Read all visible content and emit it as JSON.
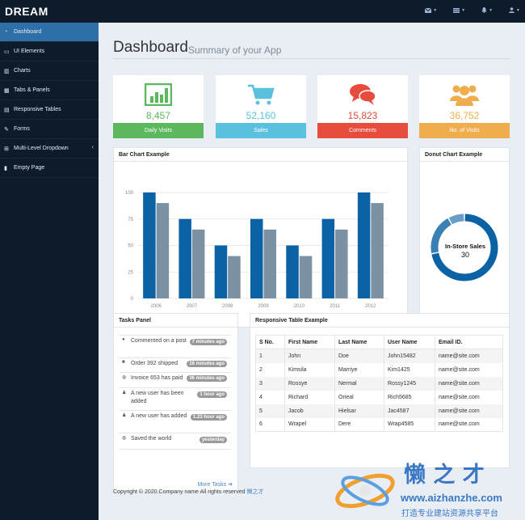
{
  "brand": "DREAM",
  "topbar": {
    "icons": [
      "envelope-icon",
      "tasks-icon",
      "bell-icon",
      "user-icon"
    ]
  },
  "sidebar": {
    "items": [
      {
        "label": "Dashboard",
        "icon": "dashboard-icon"
      },
      {
        "label": "UI Elements",
        "icon": "desktop-icon"
      },
      {
        "label": "Charts",
        "icon": "chart-icon"
      },
      {
        "label": "Tabs & Panels",
        "icon": "qrcode-icon"
      },
      {
        "label": "Responsive Tables",
        "icon": "table-icon"
      },
      {
        "label": "Forms",
        "icon": "edit-icon"
      },
      {
        "label": "Multi-Level Dropdown",
        "icon": "sitemap-icon"
      },
      {
        "label": "Empty Page",
        "icon": "file-icon"
      }
    ]
  },
  "header": {
    "title": "Dashboard",
    "subtitle": "Summary of your App"
  },
  "stats": [
    {
      "value": "8,457",
      "label": "Daily Visits",
      "color": "#5cb85c",
      "icon": "bar-chart-icon"
    },
    {
      "value": "52,160",
      "label": "Sales",
      "color": "#5bc0de",
      "icon": "shopping-cart-icon"
    },
    {
      "value": "15,823",
      "label": "Comments",
      "color": "#e74c3c",
      "icon": "comments-icon"
    },
    {
      "value": "36,752",
      "label": "No. of Visits",
      "color": "#f0ad4e",
      "icon": "users-icon"
    }
  ],
  "bar_panel": {
    "title": "Bar Chart Example"
  },
  "donut_panel": {
    "title": "Donut Chart Example",
    "center_label": "In-Store Sales",
    "center_value": "30"
  },
  "chart_data": [
    {
      "type": "bar",
      "categories": [
        "2006",
        "2007",
        "2008",
        "2009",
        "2010",
        "2011",
        "2012"
      ],
      "series": [
        {
          "values": [
            100,
            75,
            50,
            75,
            50,
            75,
            100
          ],
          "color": "#0b62a4"
        },
        {
          "values": [
            90,
            65,
            40,
            65,
            40,
            65,
            90
          ],
          "color": "#7a92a3"
        }
      ],
      "yticks": [
        "0",
        "25",
        "50",
        "75",
        "100"
      ],
      "ylim": [
        0,
        100
      ],
      "grid": true
    },
    {
      "type": "pie",
      "donut": true,
      "labels": [
        "In-Store Sales"
      ],
      "values": [
        30
      ],
      "colors": [
        "#0b62a4",
        "#3980b5",
        "#679dc6"
      ]
    }
  ],
  "tasks_panel": {
    "title": "Tasks Panel",
    "more": "More Tasks",
    "items": [
      {
        "icon": "comment-icon",
        "text": "Commented on a post",
        "badge": "7 minutes ago"
      },
      {
        "icon": "truck-icon",
        "text": "Order 392 shipped",
        "badge": "16 minutes ago"
      },
      {
        "icon": "globe-icon",
        "text": "Invoice 653 has paid",
        "badge": "36 minutes ago"
      },
      {
        "icon": "user-icon",
        "text": "A new user has been added",
        "badge": "1 hour ago"
      },
      {
        "icon": "user-icon",
        "text": "A new user has added",
        "badge": "1.23 hour ago"
      },
      {
        "icon": "globe-icon",
        "text": "Saved the world",
        "badge": "yesterday"
      }
    ]
  },
  "table_panel": {
    "title": "Responsive Table Example",
    "headers": [
      "S No.",
      "First Name",
      "Last Name",
      "User Name",
      "Email ID."
    ],
    "rows": [
      [
        "1",
        "John",
        "Doe",
        "John15482",
        "name@site.com"
      ],
      [
        "2",
        "Kimsila",
        "Marriye",
        "Kim1425",
        "name@site.com"
      ],
      [
        "3",
        "Rossye",
        "Nermal",
        "Rossy1245",
        "name@site.com"
      ],
      [
        "4",
        "Richard",
        "Orieal",
        "Rich5685",
        "name@site.com"
      ],
      [
        "5",
        "Jacob",
        "Hielsar",
        "Jac4587",
        "name@site.com"
      ],
      [
        "6",
        "Wrapel",
        "Dere",
        "Wrap4585",
        "name@site.com"
      ]
    ]
  },
  "footer": {
    "text": "Copyright © 2020.Company name All rights reserved ",
    "link": "懒之才"
  },
  "watermark": {
    "title": "懒 之 才",
    "url": "www.aizhanzhe.com",
    "slogan": "打造专业建站资源共享平台"
  }
}
